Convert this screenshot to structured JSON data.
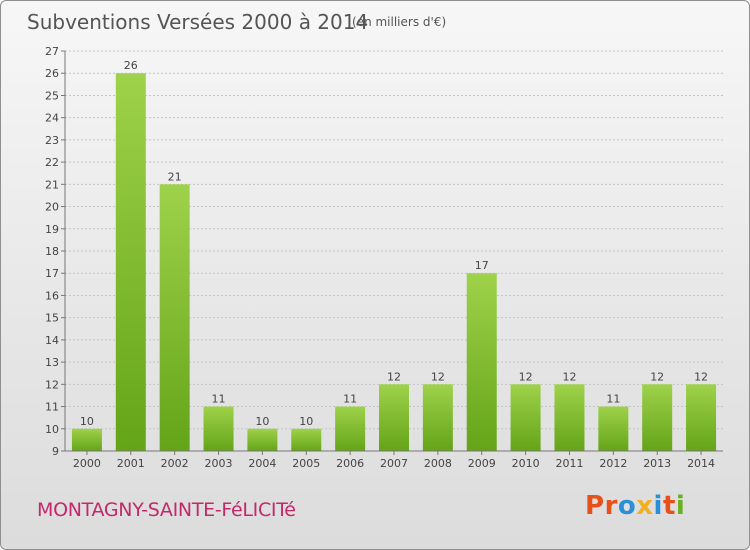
{
  "header": {
    "title": "Subventions Versées 2000 à 2014",
    "subtitle": "(en milliers d'€)"
  },
  "footer": {
    "commune": "MONTAGNY-SAINTE-FéLICITé",
    "logo_text": "Proxiti",
    "logo_colors": [
      "#e8501a",
      "#e8501a",
      "#2b8fd6",
      "#f2b01e",
      "#2b8fd6",
      "#e8501a",
      "#6ab023"
    ]
  },
  "chart_data": {
    "type": "bar",
    "title": "Subventions Versées 2000 à 2014",
    "subtitle": "(en milliers d'€)",
    "categories": [
      "2000",
      "2001",
      "2002",
      "2003",
      "2004",
      "2005",
      "2006",
      "2007",
      "2008",
      "2009",
      "2010",
      "2011",
      "2012",
      "2013",
      "2014"
    ],
    "values": [
      10,
      26,
      21,
      11,
      10,
      10,
      11,
      12,
      12,
      17,
      12,
      12,
      11,
      12,
      12
    ],
    "ylim": [
      9,
      27
    ],
    "yticks": [
      9,
      10,
      11,
      12,
      13,
      14,
      15,
      16,
      17,
      18,
      19,
      20,
      21,
      22,
      23,
      24,
      25,
      26,
      27
    ],
    "grid": true,
    "bar_color_light": "#9ed24a",
    "bar_color_dark": "#64a418"
  }
}
